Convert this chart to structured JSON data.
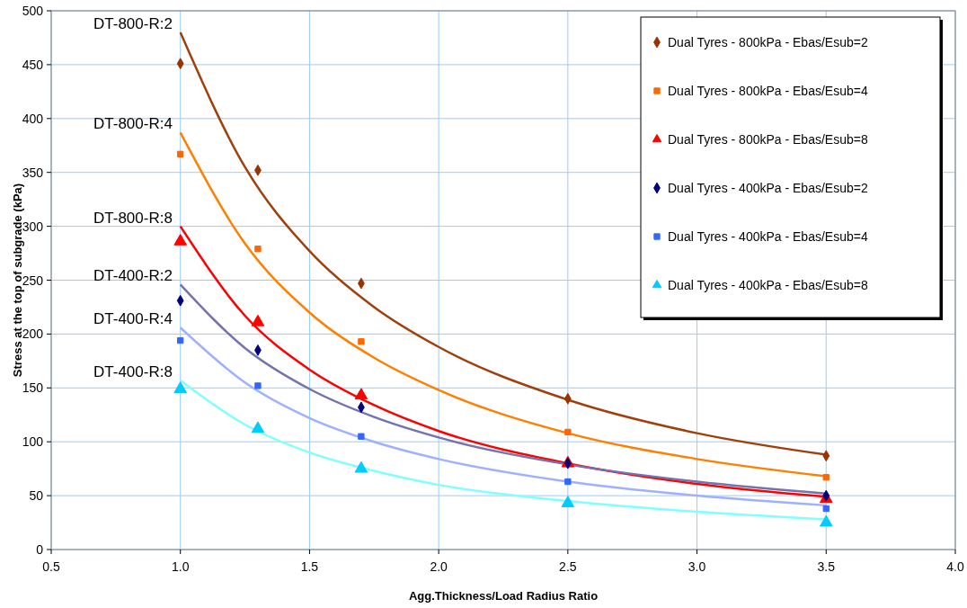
{
  "chart_data": {
    "type": "scatter",
    "xlabel": "Agg.Thickness/Load Radius Ratio",
    "ylabel": "Stress at the top of subgrade (kPa)",
    "xlim": [
      0.5,
      4.0
    ],
    "xticks": [
      {
        "value": 0.5,
        "label": "0.5"
      },
      {
        "value": 1,
        "label": "1.0"
      },
      {
        "value": 1.5,
        "label": "1.5"
      },
      {
        "value": 2,
        "label": "2.0"
      },
      {
        "value": 2.5,
        "label": "2.5"
      },
      {
        "value": 3,
        "label": "3.0"
      },
      {
        "value": 3.5,
        "label": "3.5"
      },
      {
        "value": 4,
        "label": "4.0"
      }
    ],
    "ylim": [
      0,
      500
    ],
    "yticks": [
      0,
      50,
      100,
      150,
      200,
      250,
      300,
      350,
      400,
      450,
      500
    ],
    "grid": true,
    "legend": "top right",
    "series": [
      {
        "type": "line",
        "color": "#a0400c",
        "marker": "none",
        "x": [
          1,
          1.25,
          1.5,
          1.75,
          2,
          2.5,
          3,
          3.5
        ],
        "values": [
          480,
          355,
          277,
          225,
          188,
          139,
          108,
          88
        ]
      },
      {
        "type": "line",
        "color": "#ff7f00",
        "marker": "none",
        "x": [
          1,
          1.25,
          1.5,
          1.75,
          2,
          2.5,
          3,
          3.5
        ],
        "values": [
          387,
          284,
          220,
          178,
          148,
          108,
          84,
          68
        ]
      },
      {
        "type": "line",
        "color": "#ff0000",
        "marker": "none",
        "x": [
          1,
          1.25,
          1.5,
          1.75,
          2,
          2.5,
          3,
          3.5
        ],
        "values": [
          300,
          217,
          167,
          134,
          110,
          80,
          61,
          49
        ]
      },
      {
        "type": "line",
        "color": "#7373b0",
        "marker": "none",
        "x": [
          1,
          1.25,
          1.5,
          1.75,
          2,
          2.5,
          3,
          3.5
        ],
        "values": [
          246,
          187,
          149,
          123,
          104,
          79,
          63,
          52
        ]
      },
      {
        "type": "line",
        "color": "#9fb0ff",
        "marker": "none",
        "x": [
          1,
          1.25,
          1.5,
          1.75,
          2,
          2.5,
          3,
          3.5
        ],
        "values": [
          206,
          155,
          122,
          100,
          84,
          63,
          50,
          41
        ]
      },
      {
        "type": "line",
        "color": "#80ffff",
        "marker": "none",
        "x": [
          1,
          1.25,
          1.5,
          1.75,
          2,
          2.5,
          3,
          3.5
        ],
        "values": [
          157,
          116,
          90,
          73,
          60,
          45,
          35,
          28
        ]
      },
      {
        "name": "Dual Tyres - 800kPa - Ebas/Esub=2",
        "color": "#993300",
        "marker": "diamond",
        "x": [
          1,
          1.3,
          1.7,
          2.5,
          3.5
        ],
        "values": [
          451,
          352,
          247,
          140,
          87
        ]
      },
      {
        "name": "Dual Tyres - 800kPa - Ebas/Esub=4",
        "color": "#ff6600",
        "marker": "square",
        "x": [
          1,
          1.3,
          1.7,
          2.5,
          3.5
        ],
        "values": [
          367,
          279,
          193,
          109,
          67
        ]
      },
      {
        "name": "Dual Tyres - 800kPa - Ebas/Esub=8",
        "color": "#ff0000",
        "marker": "triangle",
        "x": [
          1,
          1.3,
          1.7,
          2.5,
          3.5
        ],
        "values": [
          286,
          211,
          143,
          80,
          47
        ]
      },
      {
        "name": "Dual Tyres - 400kPa - Ebas/Esub=2",
        "color": "#000080",
        "marker": "diamond",
        "x": [
          1,
          1.3,
          1.7,
          2.5,
          3.5
        ],
        "values": [
          231,
          185,
          132,
          80,
          50
        ]
      },
      {
        "name": "Dual Tyres - 400kPa - Ebas/Esub=4",
        "color": "#3366ff",
        "marker": "square",
        "x": [
          1,
          1.3,
          1.7,
          2.5,
          3.5
        ],
        "values": [
          194,
          152,
          105,
          63,
          38
        ]
      },
      {
        "name": "Dual Tyres - 400kPa - Ebas/Esub=8",
        "color": "#00ccff",
        "marker": "triangle",
        "x": [
          1,
          1.3,
          1.7,
          2.5,
          3.5
        ],
        "values": [
          149,
          112,
          75,
          43,
          25
        ]
      }
    ],
    "annotations": [
      "DT-800-R:2",
      "DT-800-R:4",
      "DT-800-R:8",
      "DT-400-R:2",
      "DT-400-R:4",
      "DT-400-R:8"
    ]
  }
}
